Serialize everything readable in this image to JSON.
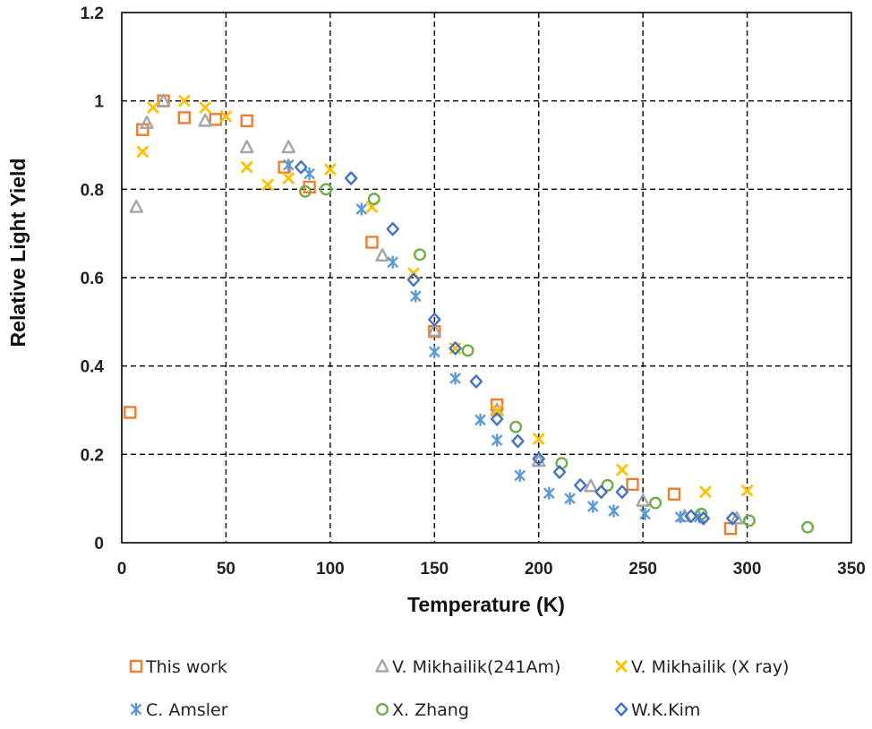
{
  "chart_data": {
    "type": "scatter",
    "title": "",
    "xlabel": "Temperature (K)",
    "ylabel": "Relative Light Yield",
    "xlim": [
      0,
      350
    ],
    "ylim": [
      0,
      1.2
    ],
    "xticks": [
      0,
      50,
      100,
      150,
      200,
      250,
      300,
      350
    ],
    "yticks": [
      0,
      0.2,
      0.4,
      0.6,
      0.8,
      1,
      1.2
    ],
    "xtick_labels": [
      "0",
      "50",
      "100",
      "150",
      "200",
      "250",
      "300",
      "350"
    ],
    "ytick_labels": [
      "0",
      "0.2",
      "0.4",
      "0.6",
      "0.8",
      "1",
      "1.2"
    ],
    "grid": true,
    "legend_position": "bottom",
    "series": [
      {
        "name": "This work",
        "marker": "square",
        "color": "#ED7D31",
        "points": [
          [
            4,
            0.295
          ],
          [
            10,
            0.935
          ],
          [
            20,
            1.0
          ],
          [
            30,
            0.962
          ],
          [
            45,
            0.958
          ],
          [
            60,
            0.955
          ],
          [
            78,
            0.85
          ],
          [
            90,
            0.805
          ],
          [
            120,
            0.68
          ],
          [
            150,
            0.478
          ],
          [
            180,
            0.312
          ],
          [
            245,
            0.132
          ],
          [
            265,
            0.11
          ],
          [
            292,
            0.032
          ]
        ]
      },
      {
        "name": "V. Mikhailik(241Am)",
        "marker": "triangle",
        "color": "#A5A5A5",
        "points": [
          [
            7,
            0.76
          ],
          [
            12,
            0.95
          ],
          [
            20,
            1.0
          ],
          [
            40,
            0.955
          ],
          [
            60,
            0.895
          ],
          [
            80,
            0.895
          ],
          [
            125,
            0.65
          ],
          [
            150,
            0.48
          ],
          [
            180,
            0.3
          ],
          [
            200,
            0.185
          ],
          [
            225,
            0.128
          ],
          [
            250,
            0.095
          ],
          [
            270,
            0.06
          ],
          [
            295,
            0.055
          ]
        ]
      },
      {
        "name": "V. Mikhailik (X ray)",
        "marker": "x",
        "color": "#FFC000",
        "points": [
          [
            10,
            0.885
          ],
          [
            15,
            0.985
          ],
          [
            30,
            1.0
          ],
          [
            40,
            0.985
          ],
          [
            50,
            0.965
          ],
          [
            60,
            0.85
          ],
          [
            70,
            0.81
          ],
          [
            80,
            0.825
          ],
          [
            100,
            0.845
          ],
          [
            120,
            0.76
          ],
          [
            140,
            0.61
          ],
          [
            160,
            0.44
          ],
          [
            180,
            0.3
          ],
          [
            200,
            0.235
          ],
          [
            240,
            0.165
          ],
          [
            280,
            0.115
          ],
          [
            300,
            0.118
          ]
        ]
      },
      {
        "name": "C. Amsler",
        "marker": "asterisk",
        "color": "#5B9BD5",
        "points": [
          [
            80,
            0.855
          ],
          [
            90,
            0.835
          ],
          [
            115,
            0.755
          ],
          [
            130,
            0.635
          ],
          [
            141,
            0.558
          ],
          [
            150,
            0.432
          ],
          [
            160,
            0.372
          ],
          [
            172,
            0.278
          ],
          [
            180,
            0.232
          ],
          [
            191,
            0.152
          ],
          [
            205,
            0.112
          ],
          [
            215,
            0.1
          ],
          [
            226,
            0.082
          ],
          [
            236,
            0.072
          ],
          [
            251,
            0.065
          ],
          [
            268,
            0.058
          ],
          [
            277,
            0.058
          ]
        ]
      },
      {
        "name": "X. Zhang",
        "marker": "circle",
        "color": "#70AD47",
        "points": [
          [
            88,
            0.795
          ],
          [
            98,
            0.8
          ],
          [
            121,
            0.778
          ],
          [
            143,
            0.652
          ],
          [
            166,
            0.435
          ],
          [
            189,
            0.262
          ],
          [
            211,
            0.18
          ],
          [
            233,
            0.13
          ],
          [
            256,
            0.09
          ],
          [
            278,
            0.065
          ],
          [
            301,
            0.05
          ],
          [
            329,
            0.035
          ]
        ]
      },
      {
        "name": "W.K.Kim",
        "marker": "diamond",
        "color": "#4472C4",
        "points": [
          [
            86,
            0.85
          ],
          [
            110,
            0.825
          ],
          [
            130,
            0.71
          ],
          [
            140,
            0.595
          ],
          [
            150,
            0.505
          ],
          [
            160,
            0.44
          ],
          [
            170,
            0.365
          ],
          [
            180,
            0.28
          ],
          [
            190,
            0.23
          ],
          [
            200,
            0.19
          ],
          [
            210,
            0.16
          ],
          [
            220,
            0.13
          ],
          [
            230,
            0.115
          ],
          [
            240,
            0.115
          ],
          [
            273,
            0.06
          ],
          [
            279,
            0.055
          ],
          [
            293,
            0.055
          ]
        ]
      }
    ]
  }
}
